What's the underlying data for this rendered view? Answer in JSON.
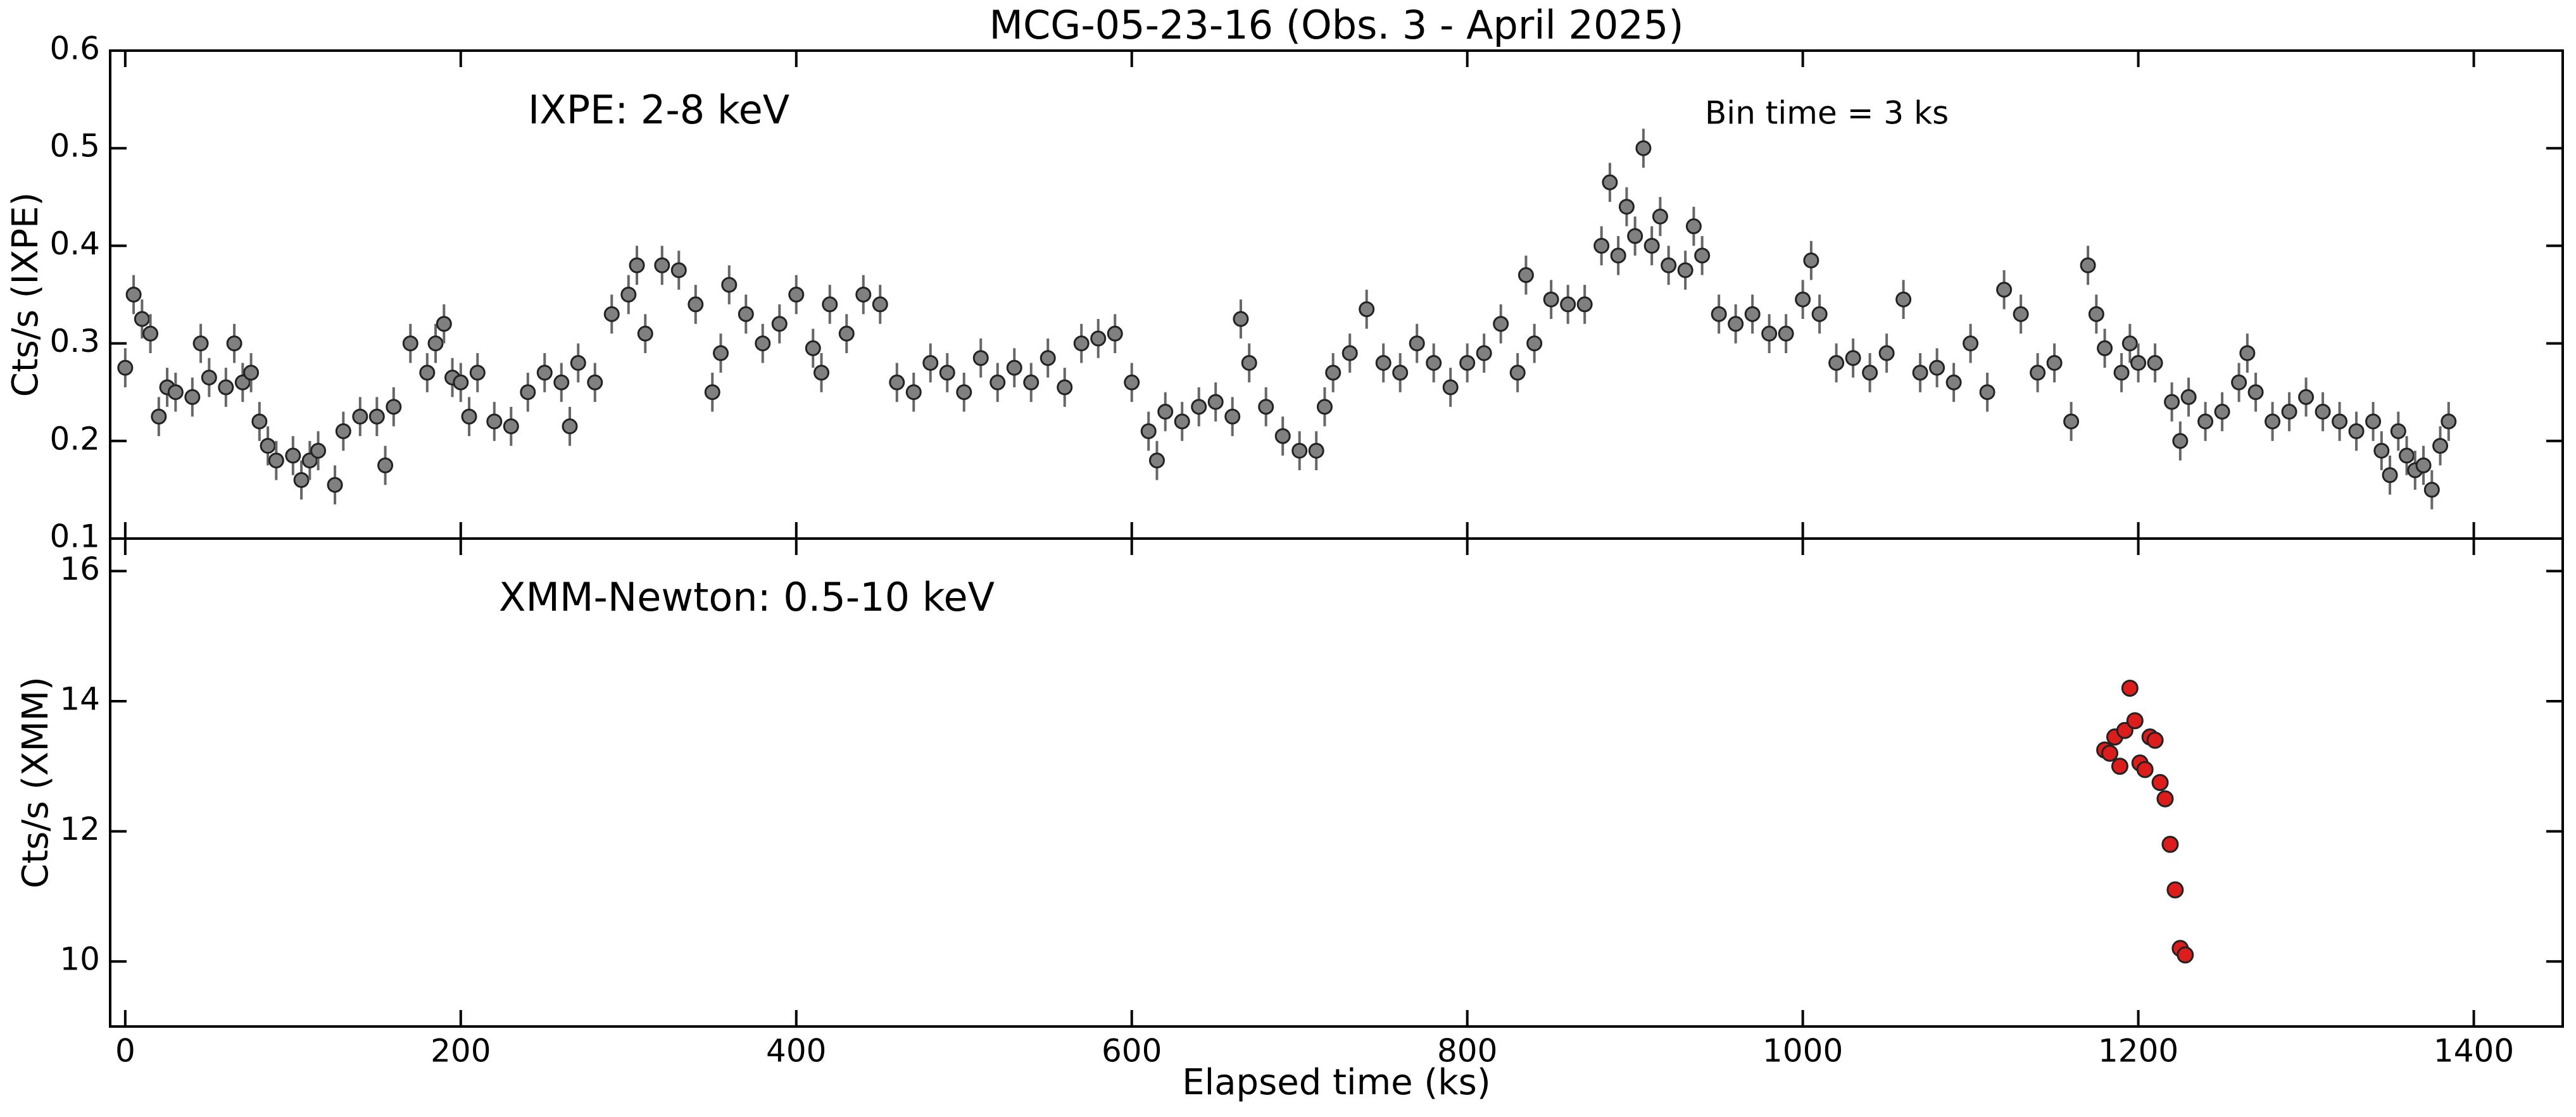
{
  "chart_data": [
    {
      "type": "scatter",
      "title": "MCG-05-23-16 (Obs. 3 - April 2025)",
      "annotation": "IXPE: 2-8 keV",
      "note": "Bin time = 3 ks",
      "ylabel": "Cts/s (IXPE)",
      "color": "#808080",
      "error_color": "#666666",
      "x": [
        0,
        5,
        10,
        15,
        20,
        25,
        30,
        40,
        45,
        50,
        60,
        65,
        70,
        75,
        80,
        85,
        90,
        100,
        105,
        110,
        115,
        125,
        130,
        140,
        150,
        155,
        160,
        170,
        180,
        185,
        190,
        195,
        200,
        205,
        210,
        220,
        230,
        240,
        250,
        260,
        265,
        270,
        280,
        290,
        300,
        305,
        310,
        320,
        330,
        340,
        350,
        355,
        360,
        370,
        380,
        390,
        400,
        410,
        415,
        420,
        430,
        440,
        450,
        460,
        470,
        480,
        490,
        500,
        510,
        520,
        530,
        540,
        550,
        560,
        570,
        580,
        590,
        600,
        610,
        615,
        620,
        630,
        640,
        650,
        660,
        665,
        670,
        680,
        690,
        700,
        710,
        715,
        720,
        730,
        740,
        750,
        760,
        770,
        780,
        790,
        800,
        810,
        820,
        830,
        835,
        840,
        850,
        860,
        870,
        880,
        885,
        890,
        895,
        900,
        905,
        910,
        915,
        920,
        930,
        935,
        940,
        950,
        960,
        970,
        980,
        990,
        1000,
        1005,
        1010,
        1020,
        1030,
        1040,
        1050,
        1060,
        1070,
        1080,
        1090,
        1100,
        1110,
        1120,
        1130,
        1140,
        1150,
        1160,
        1170,
        1175,
        1180,
        1190,
        1195,
        1200,
        1210,
        1220,
        1225,
        1230,
        1240,
        1250,
        1260,
        1265,
        1270,
        1280,
        1290,
        1300,
        1310,
        1320,
        1330,
        1340,
        1345,
        1350,
        1355,
        1360,
        1365,
        1370,
        1375,
        1380,
        1385
      ],
      "values": [
        0.275,
        0.35,
        0.325,
        0.31,
        0.225,
        0.255,
        0.25,
        0.245,
        0.3,
        0.265,
        0.255,
        0.3,
        0.26,
        0.27,
        0.22,
        0.195,
        0.18,
        0.185,
        0.16,
        0.18,
        0.19,
        0.155,
        0.21,
        0.225,
        0.225,
        0.175,
        0.235,
        0.3,
        0.27,
        0.3,
        0.32,
        0.265,
        0.26,
        0.225,
        0.27,
        0.22,
        0.215,
        0.25,
        0.27,
        0.26,
        0.215,
        0.28,
        0.26,
        0.33,
        0.35,
        0.38,
        0.31,
        0.38,
        0.375,
        0.34,
        0.25,
        0.29,
        0.36,
        0.33,
        0.3,
        0.32,
        0.35,
        0.295,
        0.27,
        0.34,
        0.31,
        0.35,
        0.34,
        0.26,
        0.25,
        0.28,
        0.27,
        0.25,
        0.285,
        0.26,
        0.275,
        0.26,
        0.285,
        0.255,
        0.3,
        0.305,
        0.31,
        0.26,
        0.21,
        0.18,
        0.23,
        0.22,
        0.235,
        0.24,
        0.225,
        0.325,
        0.28,
        0.235,
        0.205,
        0.19,
        0.19,
        0.235,
        0.27,
        0.29,
        0.335,
        0.28,
        0.27,
        0.3,
        0.28,
        0.255,
        0.28,
        0.29,
        0.32,
        0.27,
        0.37,
        0.3,
        0.345,
        0.34,
        0.34,
        0.4,
        0.465,
        0.39,
        0.44,
        0.41,
        0.5,
        0.4,
        0.43,
        0.38,
        0.375,
        0.42,
        0.39,
        0.33,
        0.32,
        0.33,
        0.31,
        0.31,
        0.345,
        0.385,
        0.33,
        0.28,
        0.285,
        0.27,
        0.29,
        0.345,
        0.27,
        0.275,
        0.26,
        0.3,
        0.25,
        0.355,
        0.33,
        0.27,
        0.28,
        0.22,
        0.38,
        0.33,
        0.295,
        0.27,
        0.3,
        0.28,
        0.28,
        0.24,
        0.2,
        0.245,
        0.22,
        0.23,
        0.26,
        0.29,
        0.25,
        0.22,
        0.23,
        0.245,
        0.23,
        0.22,
        0.21,
        0.22,
        0.19,
        0.165,
        0.21,
        0.185,
        0.17,
        0.175,
        0.15,
        0.195,
        0.22
      ],
      "errors": [
        0.02,
        0.02,
        0.02,
        0.02,
        0.02,
        0.02,
        0.02,
        0.02,
        0.02,
        0.02,
        0.02,
        0.02,
        0.02,
        0.02,
        0.02,
        0.02,
        0.02,
        0.02,
        0.02,
        0.02,
        0.02,
        0.02,
        0.02,
        0.02,
        0.02,
        0.02,
        0.02,
        0.02,
        0.02,
        0.02,
        0.02,
        0.02,
        0.02,
        0.02,
        0.02,
        0.02,
        0.02,
        0.02,
        0.02,
        0.02,
        0.02,
        0.02,
        0.02,
        0.02,
        0.02,
        0.02,
        0.02,
        0.02,
        0.02,
        0.02,
        0.02,
        0.02,
        0.02,
        0.02,
        0.02,
        0.02,
        0.02,
        0.02,
        0.02,
        0.02,
        0.02,
        0.02,
        0.02,
        0.02,
        0.02,
        0.02,
        0.02,
        0.02,
        0.02,
        0.02,
        0.02,
        0.02,
        0.02,
        0.02,
        0.02,
        0.02,
        0.02,
        0.02,
        0.02,
        0.02,
        0.02,
        0.02,
        0.02,
        0.02,
        0.02,
        0.02,
        0.02,
        0.02,
        0.02,
        0.02,
        0.02,
        0.02,
        0.02,
        0.02,
        0.02,
        0.02,
        0.02,
        0.02,
        0.02,
        0.02,
        0.02,
        0.02,
        0.02,
        0.02,
        0.02,
        0.02,
        0.02,
        0.02,
        0.02,
        0.02,
        0.02,
        0.02,
        0.02,
        0.02,
        0.02,
        0.02,
        0.02,
        0.02,
        0.02,
        0.02,
        0.02,
        0.02,
        0.02,
        0.02,
        0.02,
        0.02,
        0.02,
        0.02,
        0.02,
        0.02,
        0.02,
        0.02,
        0.02,
        0.02,
        0.02,
        0.02,
        0.02,
        0.02,
        0.02,
        0.02,
        0.02,
        0.02,
        0.02,
        0.02,
        0.02,
        0.02,
        0.02,
        0.02,
        0.02,
        0.02,
        0.02,
        0.02,
        0.02,
        0.02,
        0.02,
        0.02,
        0.02,
        0.02,
        0.02,
        0.02,
        0.02,
        0.02,
        0.02,
        0.02,
        0.02,
        0.02,
        0.02,
        0.02,
        0.02,
        0.02,
        0.02,
        0.02,
        0.02,
        0.02,
        0.02
      ],
      "xlim": [
        -9,
        1453
      ],
      "ylim": [
        0.1,
        0.6
      ],
      "yticks": [
        0.1,
        0.2,
        0.3,
        0.4,
        0.5,
        0.6
      ]
    },
    {
      "type": "scatter",
      "annotation": "XMM-Newton: 0.5-10 keV",
      "ylabel": "Cts/s (XMM)",
      "xlabel": "Elapsed time (ks)",
      "color": "#dd1c1c",
      "x": [
        1180,
        1183,
        1186,
        1189,
        1192,
        1195,
        1198,
        1201,
        1204,
        1207,
        1210,
        1213,
        1216,
        1219,
        1222,
        1225,
        1228
      ],
      "values": [
        13.25,
        13.2,
        13.45,
        13.0,
        13.55,
        14.2,
        13.7,
        13.05,
        12.95,
        13.45,
        13.4,
        12.75,
        12.5,
        11.8,
        11.1,
        10.2,
        10.1
      ],
      "xlim": [
        -9,
        1453
      ],
      "xticks": [
        0,
        200,
        400,
        600,
        800,
        1000,
        1200,
        1400
      ],
      "ylim": [
        9,
        16.5
      ],
      "yticks": [
        10,
        12,
        14,
        16
      ]
    }
  ]
}
